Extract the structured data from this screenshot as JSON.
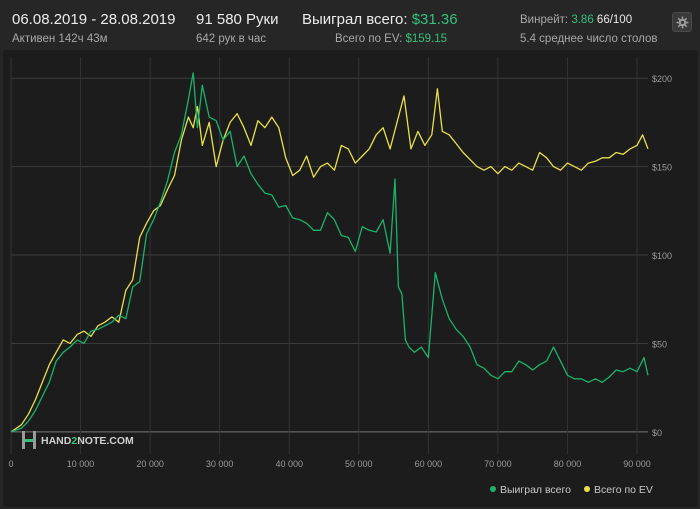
{
  "header": {
    "date_range": "06.08.2019 - 28.08.2019",
    "active_time": "Активен 142ч 43м",
    "hands": "91 580 Руки",
    "hands_per_hour": "642 рук в час",
    "won_label": "Выиграл всего:",
    "won_value": "$31.36",
    "ev_label": "Всего по EV:",
    "ev_value": "$159.15",
    "winrate_label": "Винрейт:",
    "winrate_value": "3.86",
    "winrate_rest": "66/100",
    "avg_tables": "5.4 среднее число столов"
  },
  "watermark": {
    "text_a": "HAND",
    "text_b": "2",
    "text_c": "NOTE.COM"
  },
  "colors": {
    "won": "#19b36b",
    "ev": "#e8e14a",
    "accent": "#33c07a"
  },
  "chart_data": {
    "type": "line",
    "x_ticks": [
      "0",
      "10 000",
      "20 000",
      "30 000",
      "40 000",
      "50 000",
      "60 000",
      "70 000",
      "80 000",
      "90 000"
    ],
    "y_ticks": [
      "$0",
      "$50",
      "$100",
      "$150",
      "$200"
    ],
    "xlim": [
      0,
      91580
    ],
    "ylim": [
      -8,
      212
    ],
    "grid": true,
    "legend_position": "bottom-right",
    "series": [
      {
        "name": "Выиграл всего",
        "color": "#19b36b",
        "x": [
          0,
          1500,
          2500,
          3500,
          4500,
          5500,
          6500,
          7500,
          8500,
          9500,
          10500,
          11500,
          12500,
          13500,
          14500,
          15500,
          16500,
          17500,
          18500,
          19500,
          20500,
          21500,
          22500,
          23500,
          24500,
          25500,
          26200,
          26800,
          27500,
          28500,
          29500,
          30500,
          31500,
          32500,
          33500,
          34500,
          35500,
          36500,
          37500,
          38500,
          39500,
          40500,
          41500,
          42500,
          43500,
          44500,
          45500,
          46500,
          47500,
          48500,
          49500,
          50500,
          51500,
          52500,
          53500,
          54500,
          55200,
          55700,
          56200,
          56700,
          57200,
          58000,
          59000,
          60000,
          61000,
          62000,
          63000,
          64000,
          65000,
          66000,
          67000,
          68000,
          69000,
          70000,
          71000,
          72000,
          73000,
          74000,
          75000,
          76000,
          77000,
          78000,
          79000,
          80000,
          81000,
          82000,
          83000,
          84000,
          85000,
          86000,
          87000,
          88000,
          89000,
          90000,
          91000,
          91580
        ],
        "values": [
          0,
          2,
          6,
          12,
          20,
          28,
          40,
          45,
          48,
          52,
          50,
          57,
          58,
          60,
          62,
          66,
          64,
          82,
          85,
          112,
          120,
          130,
          142,
          158,
          168,
          188,
          203,
          172,
          196,
          178,
          176,
          165,
          170,
          150,
          156,
          146,
          140,
          135,
          134,
          127,
          128,
          121,
          120,
          118,
          114,
          114,
          124,
          120,
          111,
          110,
          102,
          116,
          114,
          113,
          120,
          101,
          143,
          82,
          78,
          52,
          48,
          45,
          48,
          42,
          90,
          75,
          64,
          58,
          54,
          48,
          38,
          36,
          32,
          30,
          34,
          34,
          40,
          38,
          35,
          38,
          40,
          48,
          40,
          32,
          30,
          30,
          28,
          30,
          28,
          31,
          35,
          34,
          36,
          34,
          42,
          32
        ]
      },
      {
        "name": "Всего по EV",
        "color": "#e8e14a",
        "x": [
          0,
          1500,
          2500,
          3500,
          4500,
          5500,
          6500,
          7500,
          8500,
          9500,
          10500,
          11500,
          12500,
          13500,
          14500,
          15500,
          16500,
          17500,
          18500,
          19500,
          20500,
          21500,
          22500,
          23500,
          24500,
          25500,
          26200,
          26800,
          27500,
          28500,
          29500,
          30500,
          31500,
          32500,
          33500,
          34500,
          35500,
          36500,
          37500,
          38500,
          39500,
          40500,
          41500,
          42500,
          43500,
          44500,
          45500,
          46500,
          47500,
          48500,
          49500,
          50500,
          51500,
          52500,
          53500,
          54500,
          55500,
          56500,
          57500,
          58500,
          59500,
          60500,
          61300,
          62000,
          63000,
          64000,
          65000,
          66000,
          67000,
          68000,
          69000,
          70000,
          71000,
          72000,
          73000,
          74000,
          75000,
          76000,
          77000,
          78000,
          79000,
          80000,
          81000,
          82000,
          83000,
          84000,
          85000,
          86000,
          87000,
          88000,
          89000,
          90000,
          90800,
          91580
        ],
        "values": [
          0,
          4,
          10,
          18,
          28,
          38,
          45,
          52,
          50,
          55,
          57,
          54,
          60,
          62,
          65,
          62,
          80,
          86,
          110,
          118,
          125,
          128,
          137,
          145,
          165,
          178,
          172,
          184,
          162,
          175,
          150,
          165,
          175,
          180,
          172,
          162,
          176,
          172,
          178,
          172,
          155,
          145,
          148,
          156,
          144,
          150,
          152,
          148,
          162,
          160,
          152,
          156,
          160,
          168,
          172,
          160,
          175,
          190,
          160,
          170,
          162,
          168,
          194,
          170,
          168,
          163,
          158,
          154,
          150,
          148,
          150,
          146,
          150,
          148,
          152,
          150,
          148,
          158,
          155,
          150,
          148,
          152,
          150,
          148,
          152,
          153,
          155,
          155,
          158,
          157,
          160,
          162,
          168,
          160
        ]
      }
    ]
  },
  "legend": [
    {
      "label": "Выиграл всего",
      "color": "#19b36b"
    },
    {
      "label": "Всего по EV",
      "color": "#e8e14a"
    }
  ]
}
